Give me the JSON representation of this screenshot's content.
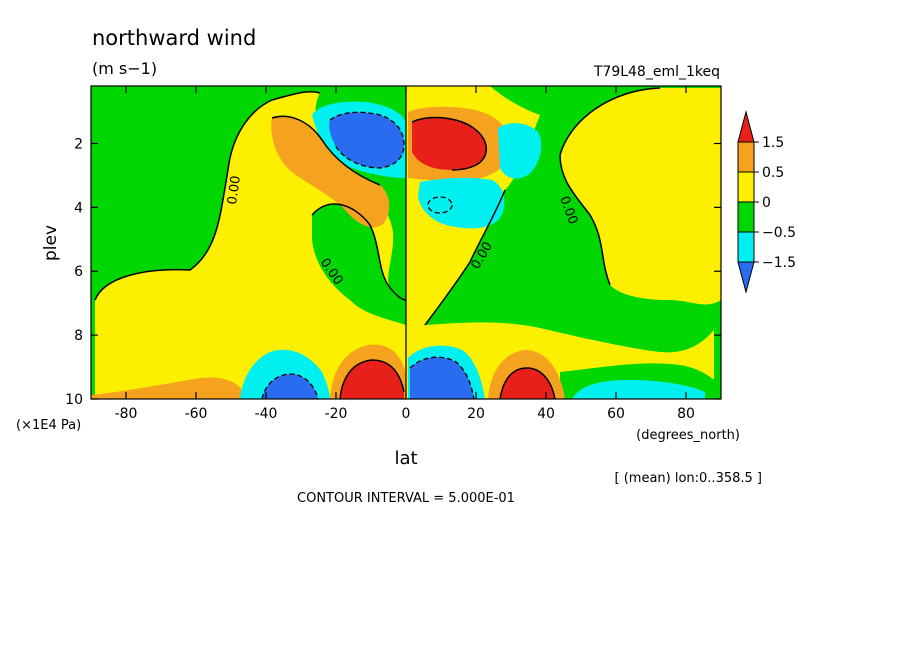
{
  "chart_data": {
    "type": "contour",
    "title": "northward wind",
    "units": "(m s−1)",
    "experiment": "T79L48_eml_1keq",
    "xlabel": "lat",
    "xunits": "(degrees_north)",
    "ylabel": "plev",
    "yunits": "(×1E4 Pa)",
    "xlim": [
      -90,
      90
    ],
    "ylim": [
      0.2,
      10
    ],
    "y_inverted": true,
    "x_ticks": [
      -80,
      -60,
      -40,
      -20,
      0,
      20,
      40,
      60,
      80
    ],
    "y_ticks": [
      2,
      4,
      6,
      8,
      10
    ],
    "contour_interval_text": "CONTOUR INTERVAL = 5.000E-01",
    "mean_text": "[ (mean) lon:0..358.5 ]",
    "contour_labels": [
      "0.00",
      "0.00",
      "0.00",
      "0.00"
    ],
    "colorbar": {
      "labels": [
        "1.5",
        "0.5",
        "0",
        "−0.5",
        "−1.5"
      ],
      "colors": [
        "#e8201a",
        "#f5a31e",
        "#fcf000",
        "#00d600",
        "#00f0f0",
        "#2a6cf0"
      ]
    },
    "regions": [
      {
        "name": "upper-sh-negative-core",
        "lat": -10,
        "plev": 2.0,
        "value": -2.0
      },
      {
        "name": "upper-nh-positive-core",
        "lat": 8,
        "plev": 2.0,
        "value": 2.0
      },
      {
        "name": "lower-sh-positive-core",
        "lat": -8,
        "plev": 9.6,
        "value": 2.5
      },
      {
        "name": "lower-nh-negative-core",
        "lat": 8,
        "plev": 9.6,
        "value": -2.5
      },
      {
        "name": "lower-sh-negative",
        "lat": -35,
        "plev": 9.6,
        "value": -1.5
      },
      {
        "name": "lower-nh-positive",
        "lat": 33,
        "plev": 9.6,
        "value": 1.5
      }
    ]
  }
}
